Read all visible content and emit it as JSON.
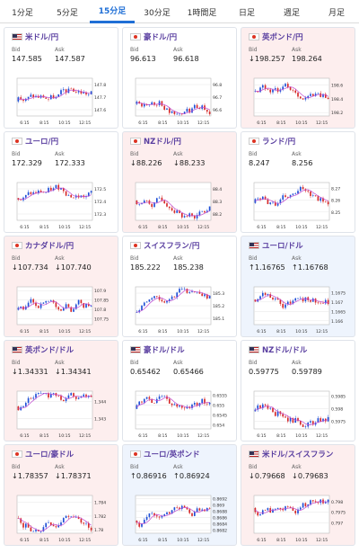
{
  "tabs": [
    {
      "label": "1分足",
      "active": false
    },
    {
      "label": "5分足",
      "active": false
    },
    {
      "label": "15分足",
      "active": true
    },
    {
      "label": "30分足",
      "active": false
    },
    {
      "label": "1時間足",
      "active": false
    },
    {
      "label": "日足",
      "active": false
    },
    {
      "label": "週足",
      "active": false
    },
    {
      "label": "月足",
      "active": false
    }
  ],
  "labels": {
    "bid": "Bid",
    "ask": "Ask"
  },
  "colors": {
    "tab_active": "#1f6fd6",
    "candle_up": "#1f4fd6",
    "candle_down": "#d62a2a",
    "ma_line": "#c04ad0",
    "up_bg": "#eef4fd",
    "down_bg": "#fdeeee"
  },
  "cards": [
    {
      "pair": "米ドル/円",
      "flag": "us",
      "state": "none",
      "bid": "147.585",
      "ask": "147.587",
      "yticks": [
        "147.8",
        "147.7",
        "147.6"
      ],
      "ytick_values": [
        147.8,
        147.7,
        147.6
      ],
      "ylim": [
        147.55,
        147.85
      ],
      "xticks": [
        "6:15",
        "8:15",
        "10:15",
        "12:15"
      ]
    },
    {
      "pair": "豪ドル/円",
      "flag": "au",
      "state": "none",
      "bid": "96.613",
      "ask": "96.618",
      "yticks": [
        "96.8",
        "96.7",
        "96.6"
      ],
      "ytick_values": [
        96.8,
        96.7,
        96.6
      ],
      "ylim": [
        96.55,
        96.85
      ],
      "xticks": [
        "6:15",
        "8:15",
        "10:15",
        "12:15"
      ]
    },
    {
      "pair": "英ポンド/円",
      "flag": "gb",
      "state": "down",
      "bid": "↓198.257",
      "ask": "198.264",
      "yticks": [
        "198.6",
        "198.4",
        "198.2"
      ],
      "ytick_values": [
        198.6,
        198.4,
        198.2
      ],
      "ylim": [
        198.15,
        198.7
      ],
      "xticks": [
        "6:15",
        "8:15",
        "10:15",
        "12:15"
      ]
    },
    {
      "pair": "ユーロ/円",
      "flag": "eu",
      "state": "none",
      "bid": "172.329",
      "ask": "172.333",
      "yticks": [
        "172.5",
        "172.4",
        "172.3"
      ],
      "ytick_values": [
        172.5,
        172.4,
        172.3
      ],
      "ylim": [
        172.25,
        172.55
      ],
      "xticks": [
        "6:15",
        "8:15",
        "10:15",
        "12:15"
      ]
    },
    {
      "pair": "NZドル/円",
      "flag": "nz",
      "state": "down",
      "bid": "↓88.226",
      "ask": "↓88.233",
      "yticks": [
        "88.4",
        "88.3",
        "88.2"
      ],
      "ytick_values": [
        88.4,
        88.3,
        88.2
      ],
      "ylim": [
        88.15,
        88.45
      ],
      "xticks": [
        "6:15",
        "8:15",
        "10:15",
        "12:15"
      ]
    },
    {
      "pair": "ランド/円",
      "flag": "za",
      "state": "none",
      "bid": "8.247",
      "ask": "8.256",
      "yticks": [
        "8.27",
        "8.26",
        "8.25"
      ],
      "ytick_values": [
        8.27,
        8.26,
        8.25
      ],
      "ylim": [
        8.243,
        8.275
      ],
      "xticks": [
        "6:15",
        "8:15",
        "10:15",
        "12:15"
      ]
    },
    {
      "pair": "カナダドル/円",
      "flag": "ca",
      "state": "down",
      "bid": "↓107.734",
      "ask": "↓107.740",
      "yticks": [
        "107.9",
        "107.85",
        "107.8",
        "107.75"
      ],
      "ytick_values": [
        107.9,
        107.85,
        107.8,
        107.75
      ],
      "ylim": [
        107.72,
        107.92
      ],
      "xticks": [
        "6:15",
        "8:15",
        "10:15",
        "12:15"
      ]
    },
    {
      "pair": "スイスフラン/円",
      "flag": "ch",
      "state": "none",
      "bid": "185.222",
      "ask": "185.238",
      "yticks": [
        "185.3",
        "185.2",
        "185.1"
      ],
      "ytick_values": [
        185.3,
        185.2,
        185.1
      ],
      "ylim": [
        185.05,
        185.35
      ],
      "xticks": [
        "6:15",
        "8:15",
        "10:15",
        "12:15"
      ]
    },
    {
      "pair": "ユーロ/ドル",
      "flag": "us",
      "state": "up",
      "bid": "↑1.16765",
      "ask": "↑1.16768",
      "yticks": [
        "1.1675",
        "1.167",
        "1.1665",
        "1.166"
      ],
      "ytick_values": [
        1.1675,
        1.167,
        1.1665,
        1.166
      ],
      "ylim": [
        1.1658,
        1.1678
      ],
      "xticks": [
        "6:15",
        "8:15",
        "10:15",
        "12:15"
      ]
    },
    {
      "pair": "英ポンド/ドル",
      "flag": "us",
      "state": "down",
      "bid": "↓1.34331",
      "ask": "↓1.34341",
      "yticks": [
        "1.344",
        "1.343"
      ],
      "ytick_values": [
        1.344,
        1.343
      ],
      "ylim": [
        1.3424,
        1.3446
      ],
      "xticks": [
        "6:15",
        "8:15",
        "10:15",
        "12:15"
      ]
    },
    {
      "pair": "豪ドル/ドル",
      "flag": "us",
      "state": "none",
      "bid": "0.65462",
      "ask": "0.65466",
      "yticks": [
        "0.6555",
        "0.655",
        "0.6545",
        "0.654"
      ],
      "ytick_values": [
        0.6555,
        0.655,
        0.6545,
        0.654
      ],
      "ylim": [
        0.6538,
        0.6557
      ],
      "xticks": [
        "6:15",
        "8:15",
        "10:15",
        "12:15"
      ]
    },
    {
      "pair": "NZドル/ドル",
      "flag": "us",
      "state": "none",
      "bid": "0.59775",
      "ask": "0.59789",
      "yticks": [
        "0.5985",
        "0.598",
        "0.5975"
      ],
      "ytick_values": [
        0.5985,
        0.598,
        0.5975
      ],
      "ylim": [
        0.5972,
        0.5987
      ],
      "xticks": [
        "6:15",
        "8:15",
        "10:15",
        "12:15"
      ]
    },
    {
      "pair": "ユーロ/豪ドル",
      "flag": "eu",
      "state": "down",
      "bid": "↓1.78357",
      "ask": "↓1.78371",
      "yticks": [
        "1.784",
        "1.782",
        "1.78"
      ],
      "ytick_values": [
        1.784,
        1.782,
        1.78
      ],
      "ylim": [
        1.7795,
        1.785
      ],
      "xticks": [
        "6:15",
        "8:15",
        "10:15",
        "12:15"
      ]
    },
    {
      "pair": "ユーロ/英ポンド",
      "flag": "eu",
      "state": "up",
      "bid": "↑0.86916",
      "ask": "↑0.86924",
      "yticks": [
        "0.8692",
        "0.869",
        "0.8688",
        "0.8686",
        "0.8684",
        "0.8682"
      ],
      "ytick_values": [
        0.8692,
        0.869,
        0.8688,
        0.8686,
        0.8684,
        0.8682
      ],
      "ylim": [
        0.8681,
        0.8693
      ],
      "xticks": [
        "6:15",
        "8:15",
        "10:15",
        "12:15"
      ]
    },
    {
      "pair": "米ドル/スイスフラン",
      "flag": "us",
      "state": "down",
      "bid": "↓0.79668",
      "ask": "↓0.79683",
      "yticks": [
        "0.798",
        "0.7975",
        "0.797"
      ],
      "ytick_values": [
        0.798,
        0.7975,
        0.797
      ],
      "ylim": [
        0.7965,
        0.7983
      ],
      "xticks": [
        "6:15",
        "8:15",
        "10:15",
        "12:15"
      ]
    }
  ]
}
